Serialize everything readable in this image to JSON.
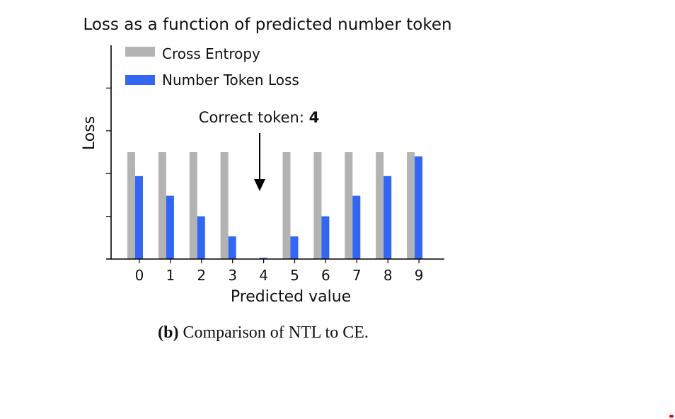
{
  "colors": {
    "cross_entropy": "#b3b3b3",
    "number_token_loss": "#3366f2",
    "axis": "#000000"
  },
  "chart_data": {
    "type": "bar",
    "title": "Loss as a function of predicted number token",
    "xlabel": "Predicted value",
    "ylabel": "Loss",
    "categories": [
      "0",
      "1",
      "2",
      "3",
      "4",
      "5",
      "6",
      "7",
      "8",
      "9"
    ],
    "series": [
      {
        "name": "Cross Entropy",
        "values": [
          2.5,
          2.5,
          2.5,
          2.5,
          0,
          2.5,
          2.5,
          2.5,
          2.5,
          2.5
        ]
      },
      {
        "name": "Number Token Loss",
        "values": [
          1.94,
          1.48,
          1.0,
          0.53,
          0.03,
          0.53,
          1.0,
          1.48,
          1.94,
          2.4
        ]
      }
    ],
    "ylim": [
      0,
      5
    ],
    "y_ticks_unlabeled": true,
    "legend": "top-left",
    "grid": false,
    "annotation": {
      "prefix": "Correct token: ",
      "value": "4",
      "target_category": "4"
    }
  },
  "caption": {
    "label": "(b)",
    "text": " Comparison of NTL to CE."
  }
}
